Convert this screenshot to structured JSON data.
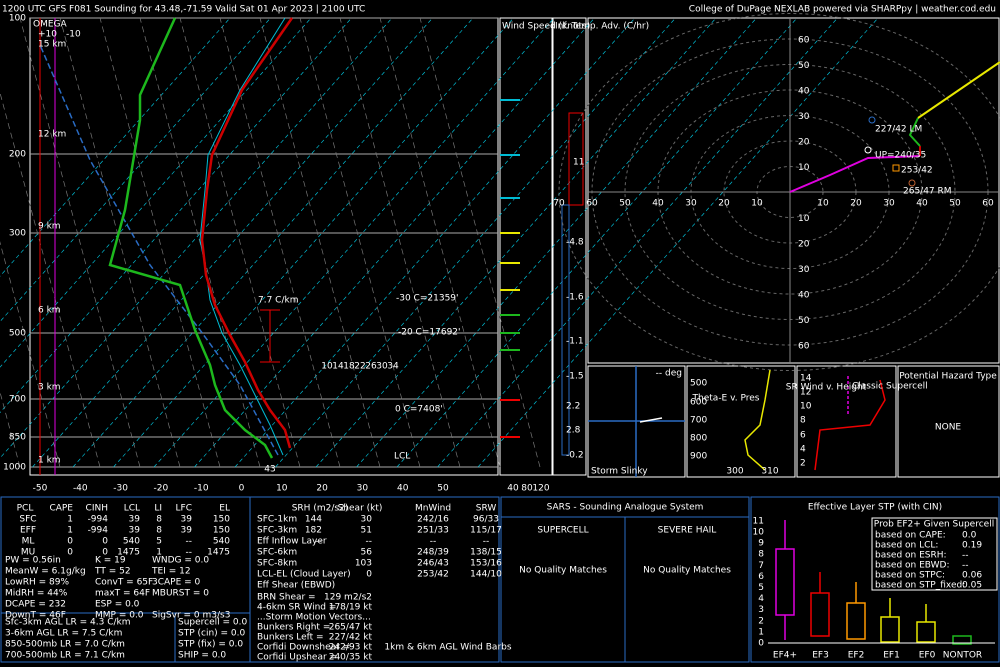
{
  "header": {
    "title": "1200 UTC GFS F081 Sounding for 43.48,-71.59 Valid  Sat 01 Apr 2023 | 2100 UTC",
    "credit": "College of DuPage NEXLAB powered via SHARPpy | weather.cod.edu"
  },
  "skewt": {
    "pressure_labels": [
      "100",
      "200",
      "300",
      "500",
      "700",
      "850",
      "1000"
    ],
    "temp_labels": [
      "-50",
      "-40",
      "-30",
      "-20",
      "-10",
      "0",
      "10",
      "20",
      "30",
      "40",
      "50"
    ],
    "omega": {
      "title": "OMEGA",
      "ticks": [
        "+10",
        "-10"
      ]
    },
    "heights": [
      "15 km",
      "12 km",
      "9 km",
      "6 km",
      "3 km",
      "1 km"
    ],
    "annotations": {
      "lapse": "7.7 C/km",
      "m30": "-30 C=21359'",
      "m20": "-20 C=17692'",
      "zero": "0 C=7408'",
      "lcl": "LCL",
      "sfc": "43"
    },
    "mixing_ratio": [
      "10",
      "14",
      "18",
      "22",
      "26",
      "30",
      "34"
    ]
  },
  "wind_speed": {
    "title": "Wind Speed (knots)",
    "labels": [
      "40",
      "80",
      "120"
    ]
  },
  "temp_adv": {
    "title": "Inf. Temp. Adv. (C/hr)",
    "values": [
      "11",
      "-4.8",
      "-1.6",
      "-1.1",
      "-1.5",
      "2.2",
      "2.8",
      "-0.2"
    ]
  },
  "hodograph": {
    "x_labels": [
      "70",
      "60",
      "50",
      "40",
      "30",
      "20",
      "10",
      "10",
      "20",
      "30",
      "40",
      "50",
      "60"
    ],
    "y_labels": [
      "60",
      "50",
      "40",
      "30",
      "20",
      "10",
      "10",
      "20",
      "30",
      "40",
      "50",
      "60"
    ],
    "labels": {
      "lm": "227/42 LM",
      "up": "UP=240/35",
      "mean": "253/42",
      "rm": "265/47 RM"
    }
  },
  "panels": {
    "slinky": {
      "deg": "-- deg",
      "title": "Storm Slinky"
    },
    "theta_e": {
      "title": "Theta-E v. Pres",
      "pres": [
        "500",
        "600",
        "700",
        "800",
        "900"
      ],
      "temps": [
        "300",
        "310"
      ]
    },
    "sr_wind": {
      "title": "SR Wind v. Height",
      "classic": "Classic Supercell",
      "heights": [
        "14",
        "12",
        "10",
        "8",
        "6",
        "4",
        "2"
      ]
    },
    "hazard": {
      "title": "Potential Hazard Type",
      "value": "NONE"
    }
  },
  "parcels": {
    "headers": [
      "PCL",
      "CAPE",
      "CINH",
      "LCL",
      "LI",
      "LFC",
      "EL"
    ],
    "rows": [
      [
        "SFC",
        "1",
        "-994",
        "39",
        "8",
        "39",
        "150"
      ],
      [
        "EFF",
        "1",
        "-994",
        "39",
        "8",
        "39",
        "150"
      ],
      [
        "ML",
        "0",
        "0",
        "540",
        "5",
        "--",
        "540"
      ],
      [
        "MU",
        "0",
        "0",
        "1475",
        "1",
        "--",
        "1475"
      ]
    ]
  },
  "indices": [
    [
      "PW = 0.56in",
      "K = 19",
      "WNDG = 0.0"
    ],
    [
      "MeanW = 6.1g/kg",
      "TT = 52",
      "TEI = 12"
    ],
    [
      "LowRH = 89%",
      "ConvT = 65F",
      "3CAPE = 0"
    ],
    [
      "MidRH = 44%",
      "maxT = 64F",
      "MBURST = 0"
    ],
    [
      "DCAPE = 232",
      "ESP = 0.0",
      ""
    ],
    [
      "DownT = 46F",
      "MMP = 0.0",
      "SigSvr = 0 m3/s3"
    ]
  ],
  "lapse_rates": [
    "Sfc-3km AGL LR = 4.3 C/km",
    "3-6km AGL LR = 7.5 C/km",
    "850-500mb LR = 7.0 C/km",
    "700-500mb LR = 7.1 C/km"
  ],
  "params": [
    "Supercell = 0.0",
    "STP (cin) = 0.0",
    "STP (fix) = 0.0",
    "SHIP = 0.0"
  ],
  "kinematics": {
    "headers": [
      "SRH (m2/s2)",
      "Shear (kt)",
      "MnWind",
      "SRW"
    ],
    "rows": [
      [
        "SFC-1km",
        "144",
        "30",
        "242/16",
        "96/33"
      ],
      [
        "SFC-3km",
        "182",
        "51",
        "251/33",
        "115/17"
      ],
      [
        "Eff Inflow Layer",
        "--",
        "--",
        "--",
        "--"
      ],
      [
        "SFC-6km",
        "",
        "56",
        "248/39",
        "138/15"
      ],
      [
        "SFC-8km",
        "",
        "103",
        "246/43",
        "153/16"
      ],
      [
        "LCL-EL (Cloud Layer)",
        "",
        "0",
        "253/42",
        "144/10"
      ],
      [
        "Eff Shear (EBWD)",
        "",
        "",
        "",
        ""
      ]
    ],
    "brn": [
      "BRN Shear =",
      "129 m2/s2"
    ],
    "sr46": [
      "4-6km SR Wind =",
      "178/19 kt"
    ],
    "motion_title": "...Storm Motion Vectors...",
    "motions": [
      [
        "Bunkers Right =",
        "265/47 kt"
      ],
      [
        "Bunkers Left =",
        "227/42 kt"
      ],
      [
        "Corfidi Downshear =",
        "242/93 kt"
      ],
      [
        "Corfidi Upshear =",
        "240/35 kt"
      ]
    ],
    "barbs": "1km & 6km AGL Wind Barbs"
  },
  "sars": {
    "title": "SARS - Sounding Analogue System",
    "supercell": "SUPERCELL",
    "hail": "SEVERE HAIL",
    "sup_result": "No Quality Matches",
    "hail_result": "No Quality Matches"
  },
  "stp": {
    "title": "Effective Layer STP (with CIN)",
    "yticks": [
      "0",
      "1",
      "2",
      "3",
      "4",
      "5",
      "6",
      "7",
      "8",
      "9",
      "10",
      "11"
    ],
    "categories": [
      "EF4+",
      "EF3",
      "EF2",
      "EF1",
      "EF0",
      "NONTOR"
    ],
    "prob_title": "Prob EF2+ Given Supercell",
    "prob": [
      [
        "based on CAPE:",
        "0.0"
      ],
      [
        "based on LCL:",
        "0.19"
      ],
      [
        "based on ESRH:",
        "--"
      ],
      [
        "based on EBWD:",
        "--"
      ],
      [
        "based on STPC:",
        "0.06"
      ],
      [
        "based on STP_fixed:",
        "0.05"
      ]
    ]
  }
}
